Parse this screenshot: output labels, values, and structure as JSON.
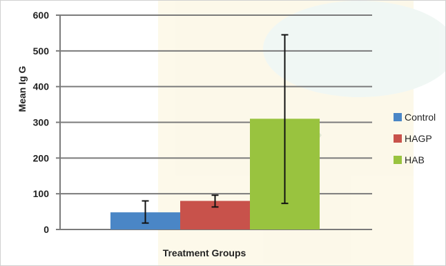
{
  "chart_data": {
    "type": "bar",
    "categories": [
      "Control",
      "HAGP",
      "HAB"
    ],
    "values": [
      48,
      80,
      310
    ],
    "error_low": [
      18,
      63,
      73
    ],
    "error_high": [
      80,
      96,
      545
    ],
    "title": "",
    "xlabel": "Treatment Groups",
    "ylabel": "Mean Ig G",
    "ylim": [
      0,
      600
    ],
    "yticks": [
      0,
      100,
      200,
      300,
      400,
      500,
      600
    ],
    "grid": true,
    "legend": "right",
    "colors": [
      "#4a86c6",
      "#c8524b",
      "#99c33f"
    ],
    "series": [
      {
        "name": "Control",
        "value": 48,
        "color": "#4a86c6"
      },
      {
        "name": "HAGP",
        "value": 80,
        "color": "#c8524b"
      },
      {
        "name": "HAB",
        "value": 310,
        "color": "#99c33f"
      }
    ]
  }
}
